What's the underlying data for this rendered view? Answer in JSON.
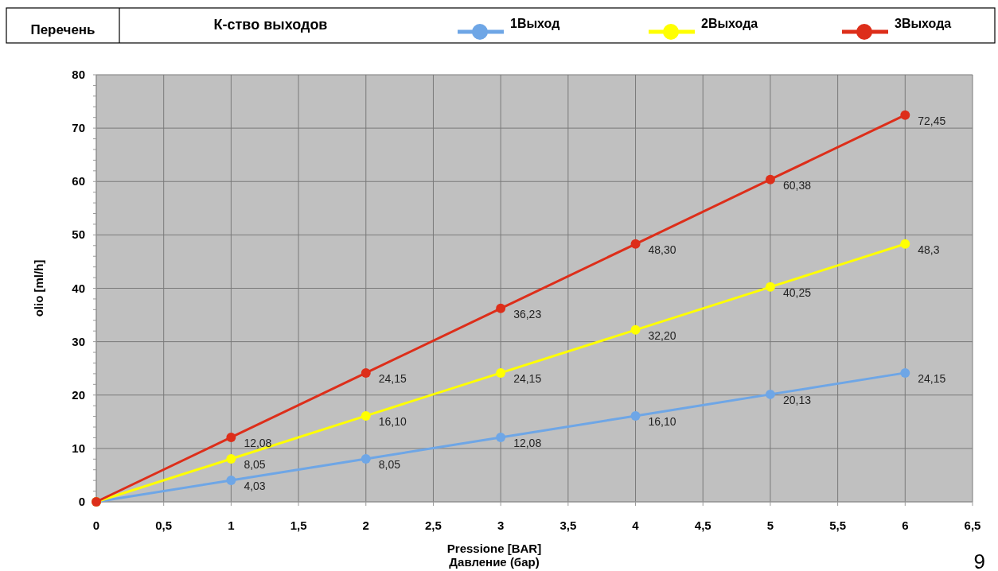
{
  "chart_data": {
    "type": "line",
    "title": "Перечень",
    "legend_title": "К-ство выходов",
    "legend": "top",
    "xlabel": "Pressione [BAR]\nДавление (бар)",
    "ylabel": "olio [ml/h]",
    "annotations": [
      "9"
    ],
    "x": [
      0,
      1,
      2,
      3,
      4,
      5,
      6
    ],
    "series": [
      {
        "name": "1Выход",
        "color": "#6ea6e6",
        "values": [
          0,
          4.03,
          8.05,
          12.08,
          16.1,
          20.13,
          24.15
        ],
        "value_labels": [
          null,
          "4,03",
          "8,05",
          "12,08",
          "16,10",
          "20,13",
          "24,15"
        ]
      },
      {
        "name": "2Выхода",
        "color": "#ffff00",
        "values": [
          0,
          8.05,
          16.1,
          24.15,
          32.2,
          40.25,
          48.3
        ],
        "value_labels": [
          null,
          "8,05",
          "16,10",
          "24,15",
          "32,20",
          "40,25",
          "48,3"
        ]
      },
      {
        "name": "3Выхода",
        "color": "#dd2e1a",
        "values": [
          0,
          12.08,
          24.15,
          36.23,
          48.3,
          60.38,
          72.45
        ],
        "value_labels": [
          null,
          "12,08",
          "24,15",
          "36,23",
          "48,30",
          "60,38",
          "72,45"
        ]
      }
    ],
    "xlim": [
      0,
      6.5
    ],
    "xticks": [
      0,
      {
        "value": 0.5,
        "label": "0,5"
      },
      1,
      {
        "value": 1.5,
        "label": "1,5"
      },
      2,
      {
        "value": 2.5,
        "label": "2,5"
      },
      3,
      {
        "value": 3.5,
        "label": "3,5"
      },
      4,
      {
        "value": 4.5,
        "label": "4,5"
      },
      5,
      {
        "value": 5.5,
        "label": "5,5"
      },
      6,
      {
        "value": 6.5,
        "label": "6,5"
      }
    ],
    "ylim": [
      0,
      80
    ],
    "yticks": [
      0,
      10,
      20,
      30,
      40,
      50,
      60,
      70,
      80
    ],
    "grid": true,
    "marker": "circle",
    "line_style": "solid"
  }
}
